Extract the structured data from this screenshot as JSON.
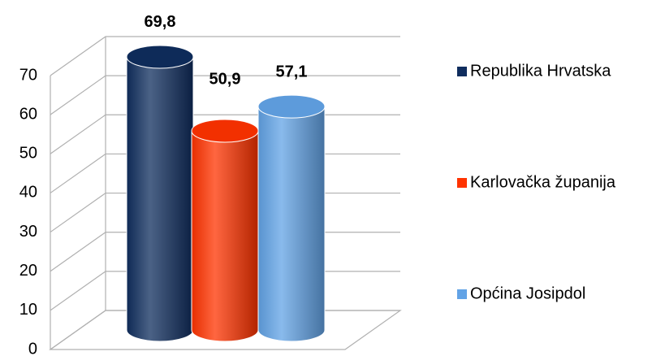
{
  "chart_data": {
    "type": "bar3d-cylinder",
    "categories": [
      null
    ],
    "series": [
      {
        "name": "Republika Hrvatska",
        "color": "#0f2d5e",
        "values": [
          69.8
        ],
        "value_labels": [
          "69,8"
        ]
      },
      {
        "name": "Karlovačka županija",
        "color": "#ff3300",
        "values": [
          50.9
        ],
        "value_labels": [
          "50,9"
        ]
      },
      {
        "name": "Općina Josipdol",
        "color": "#62a3e6",
        "values": [
          57.1
        ],
        "value_labels": [
          "57,1"
        ]
      }
    ],
    "ylim": [
      0,
      70
    ],
    "yticks": [
      0,
      10,
      20,
      30,
      40,
      50,
      60,
      70
    ],
    "grid": true,
    "legend": "right"
  }
}
